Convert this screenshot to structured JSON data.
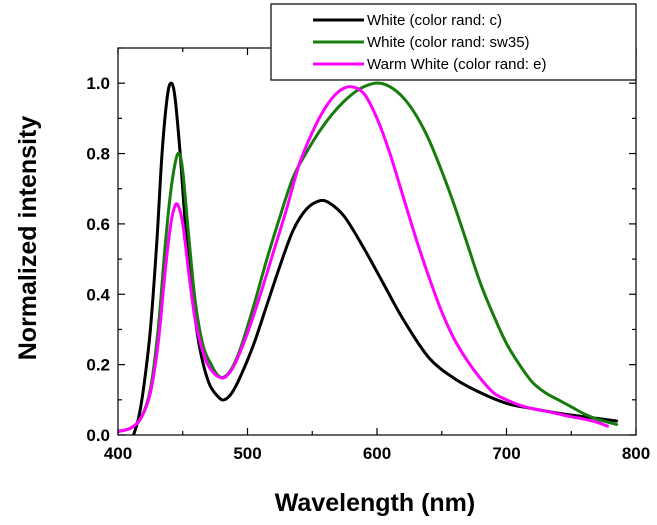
{
  "chart_data": {
    "type": "line",
    "xlabel": "Wavelength (nm)",
    "ylabel": "Normalized intensity",
    "xlim": [
      400,
      800
    ],
    "ylim": [
      0,
      1.1
    ],
    "x_ticks": [
      400,
      500,
      600,
      700,
      800
    ],
    "y_ticks": [
      0.0,
      0.2,
      0.4,
      0.6,
      0.8,
      1.0
    ],
    "x_tick_labels": [
      "400",
      "500",
      "600",
      "700",
      "800"
    ],
    "y_tick_labels": [
      "0.0",
      "0.2",
      "0.4",
      "0.6",
      "0.8",
      "1.0"
    ],
    "grid": false,
    "legend_position": "top-right",
    "series": [
      {
        "name": "White (color rand: c)",
        "color": "#000000",
        "points": [
          [
            412,
            0.0
          ],
          [
            416,
            0.05
          ],
          [
            420,
            0.14
          ],
          [
            425,
            0.3
          ],
          [
            430,
            0.55
          ],
          [
            434,
            0.8
          ],
          [
            438,
            0.96
          ],
          [
            441,
            1.0
          ],
          [
            444,
            0.96
          ],
          [
            448,
            0.8
          ],
          [
            452,
            0.6
          ],
          [
            458,
            0.38
          ],
          [
            463,
            0.25
          ],
          [
            470,
            0.15
          ],
          [
            477,
            0.11
          ],
          [
            482,
            0.1
          ],
          [
            488,
            0.12
          ],
          [
            495,
            0.17
          ],
          [
            505,
            0.26
          ],
          [
            515,
            0.37
          ],
          [
            525,
            0.48
          ],
          [
            535,
            0.58
          ],
          [
            545,
            0.64
          ],
          [
            555,
            0.665
          ],
          [
            563,
            0.66
          ],
          [
            575,
            0.62
          ],
          [
            590,
            0.53
          ],
          [
            605,
            0.43
          ],
          [
            620,
            0.33
          ],
          [
            640,
            0.22
          ],
          [
            660,
            0.16
          ],
          [
            680,
            0.12
          ],
          [
            700,
            0.09
          ],
          [
            720,
            0.075
          ],
          [
            740,
            0.062
          ],
          [
            760,
            0.052
          ],
          [
            785,
            0.04
          ]
        ]
      },
      {
        "name": "White (color rand: sw35)",
        "color": "#167C0C",
        "points": [
          [
            400,
            0.01
          ],
          [
            410,
            0.02
          ],
          [
            418,
            0.05
          ],
          [
            425,
            0.13
          ],
          [
            431,
            0.3
          ],
          [
            436,
            0.52
          ],
          [
            440,
            0.67
          ],
          [
            444,
            0.77
          ],
          [
            447,
            0.8
          ],
          [
            450,
            0.75
          ],
          [
            455,
            0.55
          ],
          [
            460,
            0.37
          ],
          [
            466,
            0.25
          ],
          [
            472,
            0.2
          ],
          [
            477,
            0.17
          ],
          [
            482,
            0.165
          ],
          [
            488,
            0.19
          ],
          [
            495,
            0.25
          ],
          [
            505,
            0.37
          ],
          [
            515,
            0.5
          ],
          [
            525,
            0.62
          ],
          [
            535,
            0.73
          ],
          [
            545,
            0.8
          ],
          [
            555,
            0.86
          ],
          [
            565,
            0.91
          ],
          [
            575,
            0.95
          ],
          [
            585,
            0.98
          ],
          [
            595,
            0.997
          ],
          [
            602,
            1.0
          ],
          [
            610,
            0.99
          ],
          [
            620,
            0.96
          ],
          [
            630,
            0.91
          ],
          [
            640,
            0.84
          ],
          [
            650,
            0.75
          ],
          [
            660,
            0.65
          ],
          [
            670,
            0.54
          ],
          [
            680,
            0.43
          ],
          [
            690,
            0.34
          ],
          [
            700,
            0.26
          ],
          [
            710,
            0.2
          ],
          [
            720,
            0.15
          ],
          [
            730,
            0.12
          ],
          [
            740,
            0.1
          ],
          [
            750,
            0.08
          ],
          [
            760,
            0.06
          ],
          [
            770,
            0.045
          ],
          [
            785,
            0.03
          ]
        ]
      },
      {
        "name": "Warm White (color rand: e)",
        "color": "#FF00FF",
        "points": [
          [
            400,
            0.01
          ],
          [
            410,
            0.02
          ],
          [
            418,
            0.05
          ],
          [
            425,
            0.12
          ],
          [
            431,
            0.26
          ],
          [
            436,
            0.45
          ],
          [
            440,
            0.58
          ],
          [
            443,
            0.64
          ],
          [
            446,
            0.655
          ],
          [
            450,
            0.6
          ],
          [
            455,
            0.45
          ],
          [
            460,
            0.32
          ],
          [
            467,
            0.22
          ],
          [
            473,
            0.18
          ],
          [
            478,
            0.165
          ],
          [
            483,
            0.165
          ],
          [
            490,
            0.2
          ],
          [
            500,
            0.29
          ],
          [
            510,
            0.4
          ],
          [
            520,
            0.52
          ],
          [
            530,
            0.64
          ],
          [
            540,
            0.77
          ],
          [
            550,
            0.86
          ],
          [
            560,
            0.93
          ],
          [
            570,
            0.975
          ],
          [
            580,
            0.99
          ],
          [
            590,
            0.97
          ],
          [
            600,
            0.9
          ],
          [
            610,
            0.8
          ],
          [
            620,
            0.68
          ],
          [
            630,
            0.56
          ],
          [
            640,
            0.45
          ],
          [
            650,
            0.35
          ],
          [
            660,
            0.27
          ],
          [
            670,
            0.21
          ],
          [
            680,
            0.16
          ],
          [
            690,
            0.12
          ],
          [
            700,
            0.1
          ],
          [
            710,
            0.085
          ],
          [
            720,
            0.075
          ],
          [
            730,
            0.068
          ],
          [
            740,
            0.06
          ],
          [
            750,
            0.052
          ],
          [
            760,
            0.045
          ],
          [
            770,
            0.036
          ],
          [
            778,
            0.025
          ]
        ]
      }
    ]
  }
}
